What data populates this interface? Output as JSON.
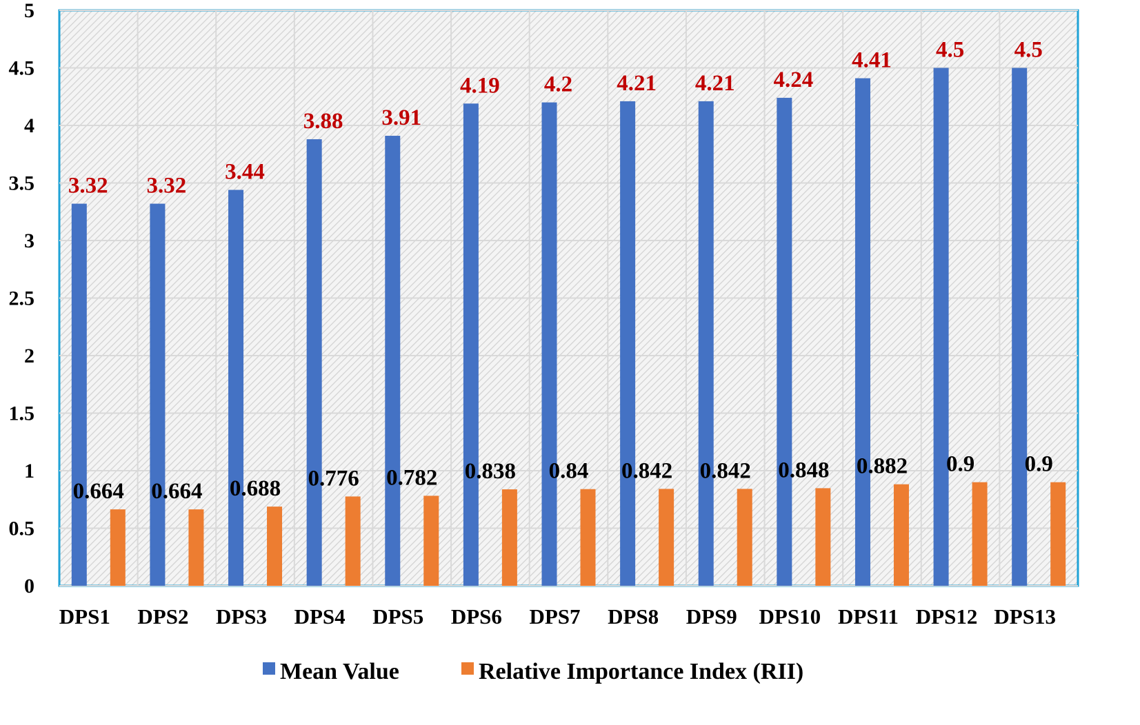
{
  "chart_data": {
    "type": "bar",
    "categories": [
      "DPS1",
      "DPS2",
      "DPS3",
      "DPS4",
      "DPS5",
      "DPS6",
      "DPS7",
      "DPS8",
      "DPS9",
      "DPS10",
      "DPS11",
      "DPS12",
      "DPS13"
    ],
    "series": [
      {
        "name": "Mean Value",
        "color": "#4472c4",
        "label_color": "#c00000",
        "values": [
          3.32,
          3.32,
          3.44,
          3.88,
          3.91,
          4.19,
          4.2,
          4.21,
          4.21,
          4.24,
          4.41,
          4.5,
          4.5
        ],
        "labels": [
          "3.32",
          "3.32",
          "3.44",
          "3.88",
          "3.91",
          "4.19",
          "4.2",
          "4.21",
          "4.21",
          "4.24",
          "4.41",
          "4.5",
          "4.5"
        ]
      },
      {
        "name": "Relative Importance Index (RII)",
        "color": "#ed7d31",
        "label_color": "#000000",
        "values": [
          0.664,
          0.664,
          0.688,
          0.776,
          0.782,
          0.838,
          0.84,
          0.842,
          0.842,
          0.848,
          0.882,
          0.9,
          0.9
        ],
        "labels": [
          "0.664",
          "0.664",
          "0.688",
          "0.776",
          "0.782",
          "0.838",
          "0.84",
          "0.842",
          "0.842",
          "0.848",
          "0.882",
          "0.9",
          "0.9"
        ]
      }
    ],
    "ylim": [
      0,
      5
    ],
    "yticks": [
      "0",
      "0.5",
      "1",
      "1.5",
      "2",
      "2.5",
      "3",
      "3.5",
      "4",
      "4.5",
      "5"
    ],
    "grid": true,
    "legend_position": "bottom",
    "plot_border_color": "#1fa2d6"
  }
}
